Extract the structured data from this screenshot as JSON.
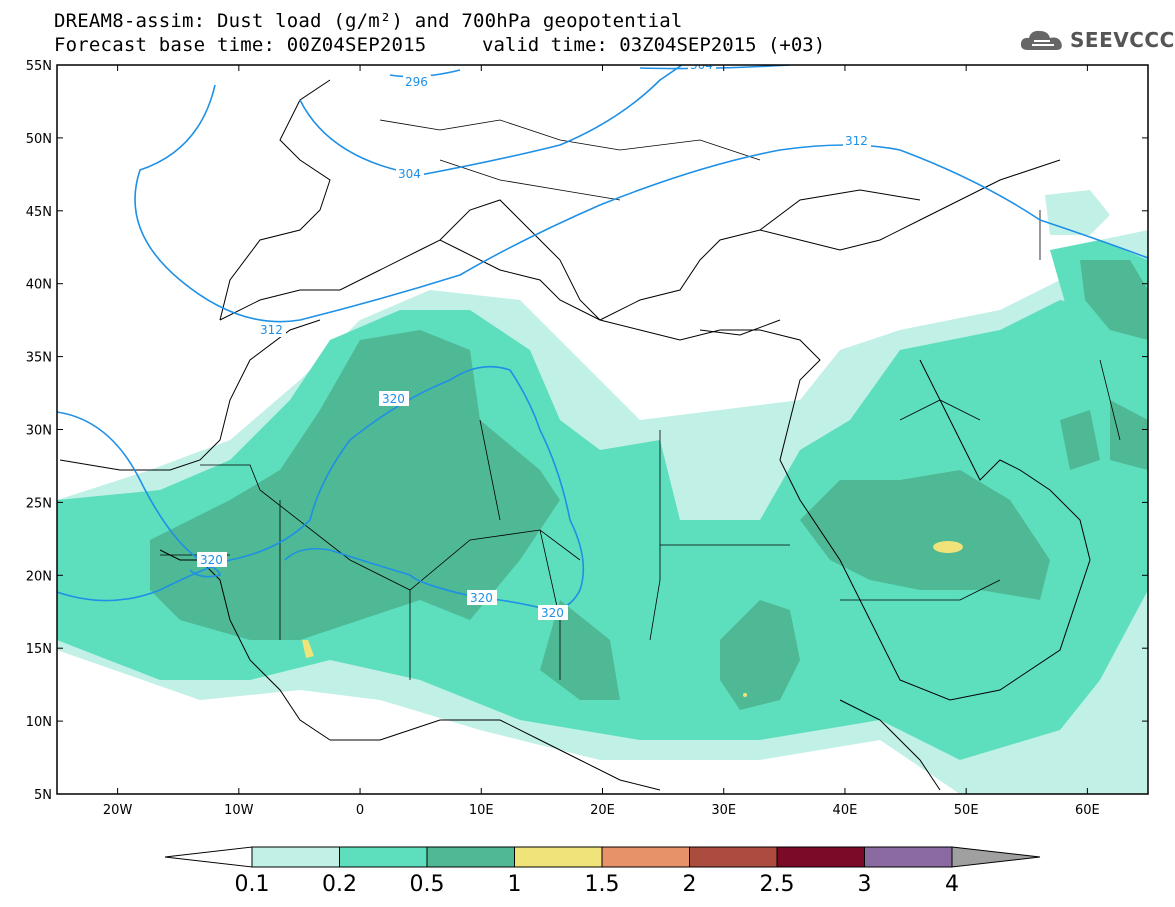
{
  "title": {
    "line1": "DREAM8-assim: Dust load (g/m²) and 700hPa geopotential",
    "line2a": "Forecast base time: 00Z04SEP2015",
    "line2b": "valid time: 03Z04SEP2015 (+03)"
  },
  "logo": {
    "text": "SEEVCCC",
    "icon": "cloud-icon"
  },
  "axes": {
    "lat_labels": [
      "55N",
      "50N",
      "45N",
      "40N",
      "35N",
      "30N",
      "25N",
      "20N",
      "15N",
      "10N",
      "5N"
    ],
    "lon_labels": [
      "20W",
      "10W",
      "0",
      "10E",
      "20E",
      "30E",
      "40E",
      "50E",
      "60E"
    ],
    "lat_range": [
      5,
      55
    ],
    "lon_range": [
      -25,
      65
    ]
  },
  "contours": {
    "labels": [
      "296",
      "304",
      "312",
      "320",
      "320",
      "320",
      "320",
      "304",
      "312"
    ],
    "color": "#1e90e6"
  },
  "colorbar": {
    "ticks": [
      "0.1",
      "0.2",
      "0.5",
      "1",
      "1.5",
      "2",
      "2.5",
      "3",
      "4"
    ],
    "colors": [
      "#c0f0e6",
      "#5ddfbe",
      "#4fb894",
      "#f0e37a",
      "#e8926a",
      "#ac4c3e",
      "#7a0a28",
      "#8a6aa0",
      "#a0a0a0"
    ]
  }
}
